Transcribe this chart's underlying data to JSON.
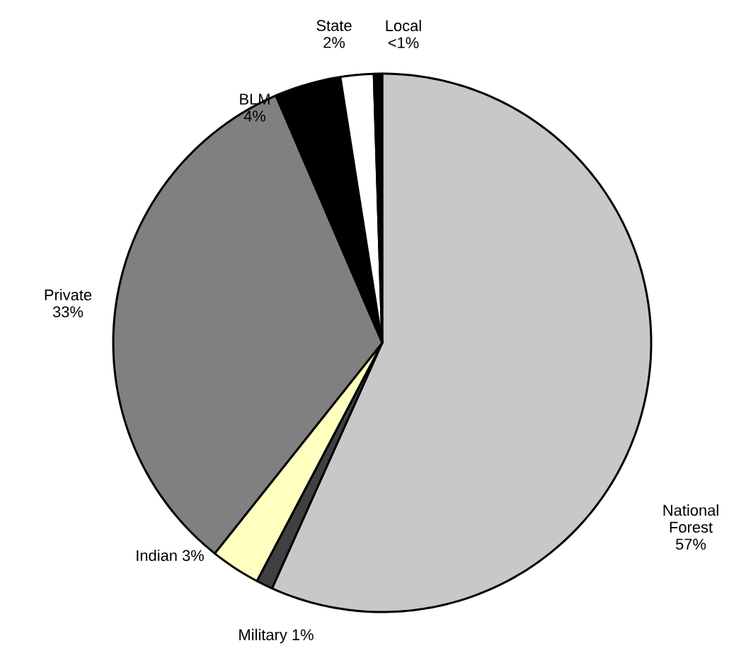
{
  "chart_data": {
    "type": "pie",
    "categories": [
      "National Forest",
      "Military",
      "Indian",
      "Private",
      "BLM",
      "State",
      "Local"
    ],
    "values": [
      57,
      1,
      3,
      33,
      4,
      2,
      0.5
    ],
    "value_labels": [
      "57%",
      "1%",
      "3%",
      "33%",
      "4%",
      "2%",
      "<1%"
    ],
    "colors": [
      "#c8c8c8",
      "#404040",
      "#ffffc0",
      "#808080",
      "#000000",
      "#ffffff",
      "#000000"
    ]
  }
}
